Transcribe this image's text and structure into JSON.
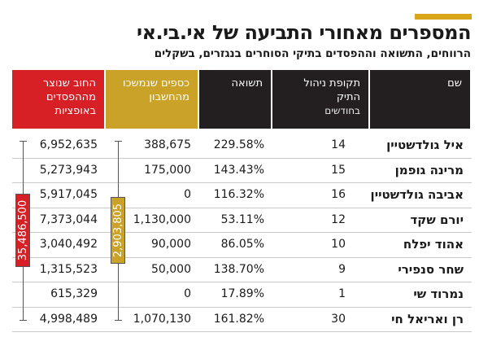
{
  "header": {
    "title": "המספרים מאחורי התביעה של אי.בי.אי",
    "subtitle": "הרווחים, התשואה וההפסדים בתיקי הסוחרים בנגזרים, בשקלים"
  },
  "table": {
    "columns": [
      "שם",
      {
        "title": "תקופת ניהול התיק",
        "note": "בחודשים"
      },
      "תשואה",
      "כספים שנמשכו מהחשבון",
      "החוב שנוצר מההפסדים באופציות"
    ],
    "rows": [
      [
        "איל גולדשטיין",
        "14",
        "229.58%",
        "388,675",
        "6,952,635"
      ],
      [
        "מרינה גופמן",
        "15",
        "143.43%",
        "175,000",
        "5,273,943"
      ],
      [
        "אביבה גולדשטיין",
        "16",
        "116.32%",
        "0",
        "5,917,045"
      ],
      [
        "יורם שקד",
        "12",
        "53.11%",
        "1,130,000",
        "7,373,044"
      ],
      [
        "אהוד יפלח",
        "10",
        "86.05%",
        "90,000",
        "3,040,492"
      ],
      [
        "שחר סנפירי",
        "9",
        "138.70%",
        "50,000",
        "1,315,523"
      ],
      [
        "נמרוד שי",
        "1",
        "17.89%",
        "0",
        "615,329"
      ],
      [
        "רן ואריאל חי",
        "30",
        "161.82%",
        "1,070,130",
        "4,998,489"
      ]
    ],
    "totals": {
      "withdrawn": "2,903,805",
      "debt": "35,486,500"
    }
  }
}
